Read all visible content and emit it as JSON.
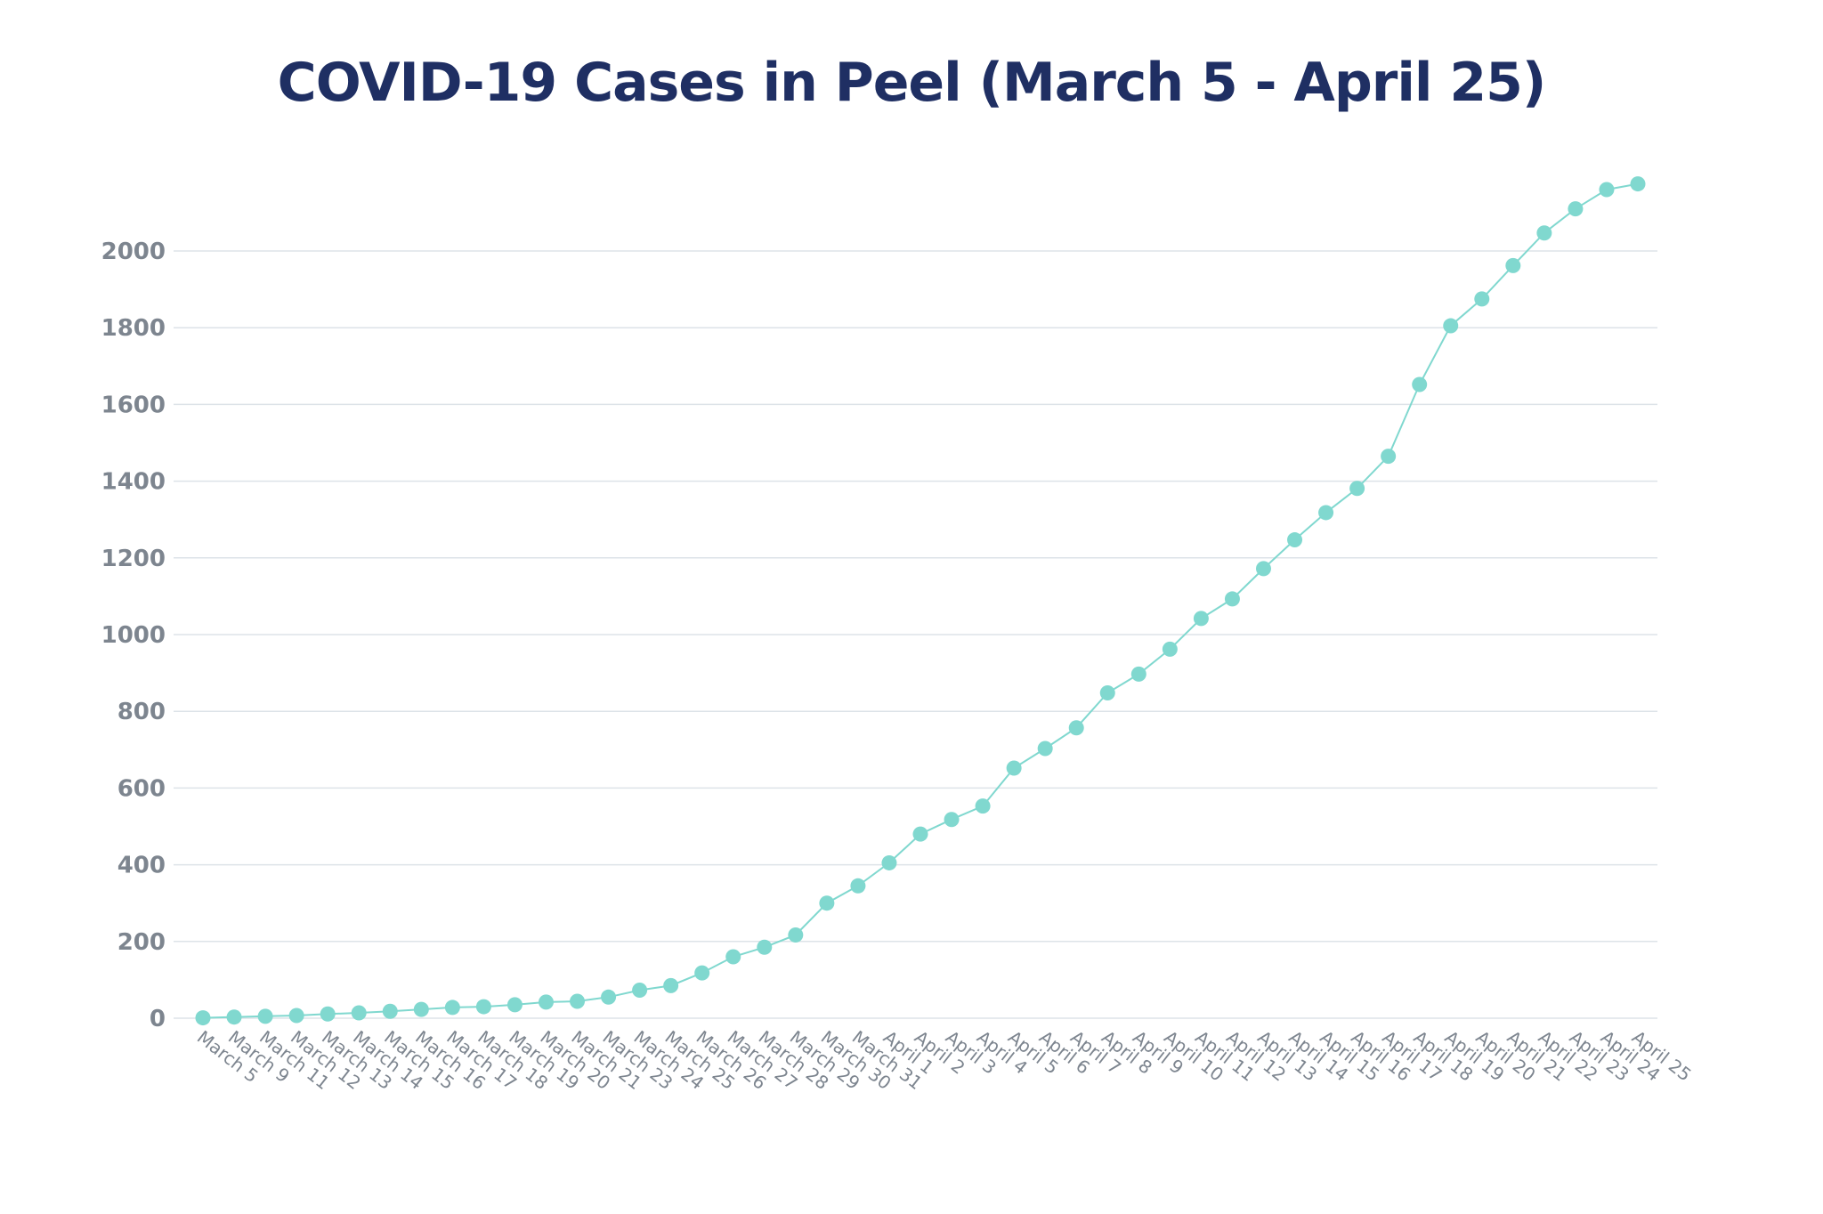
{
  "chart_data": {
    "type": "line",
    "title": "COVID-19 Cases in Peel (March 5 - April 25)",
    "xlabel": "",
    "ylabel": "",
    "ylim": [
      0,
      2200
    ],
    "yticks": [
      0,
      200,
      400,
      600,
      800,
      1000,
      1200,
      1400,
      1600,
      1800,
      2000
    ],
    "grid": true,
    "legend": "none",
    "color": "#80d8cf",
    "categories": [
      "March 5",
      "March 9",
      "March 11",
      "March 12",
      "March 13",
      "March 14",
      "March 15",
      "March 16",
      "March 17",
      "March 18",
      "March 19",
      "March 20",
      "March 21",
      "March 23",
      "March 24",
      "March 25",
      "March 26",
      "March 27",
      "March 28",
      "March 29",
      "March 30",
      "March 31",
      "April 1",
      "April 2",
      "April 3",
      "April 4",
      "April 5",
      "April 6",
      "April 7",
      "April 8",
      "April 9",
      "April 10",
      "April 11",
      "April 12",
      "April 13",
      "April 14",
      "April 15",
      "April 16",
      "April 17",
      "April 18",
      "April 19",
      "April 20",
      "April 21",
      "April 22",
      "April 23",
      "April 24",
      "April 25"
    ],
    "series": [
      {
        "values": [
          1,
          3,
          5,
          7,
          11,
          14,
          18,
          23,
          28,
          30,
          35,
          42,
          44,
          55,
          73,
          85,
          118,
          160,
          185,
          217,
          300,
          345,
          405,
          480,
          518,
          553,
          652,
          703,
          757,
          848,
          897,
          962,
          1042,
          1093,
          1172,
          1247,
          1318,
          1381,
          1465,
          1652,
          1805,
          1875,
          1962,
          2047,
          2110,
          2160,
          2175
        ]
      }
    ]
  }
}
